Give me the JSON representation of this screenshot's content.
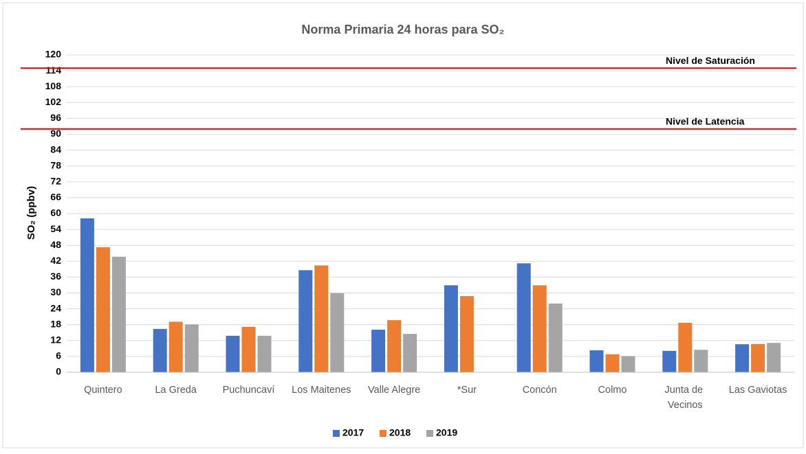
{
  "chart_data": {
    "type": "bar",
    "title": "Norma Primaria 24 horas para SO₂",
    "y_label": "SO₂ (ppbv)",
    "categories": [
      "Quintero",
      "La Greda",
      "Puchuncaví",
      "Los Maitenes",
      "Valle Alegre",
      "*Sur",
      "Concón",
      "Colmo",
      "Junta de Vecinos",
      "Las Gaviotas"
    ],
    "series": [
      {
        "name": "2017",
        "color": "#4472c4",
        "values": [
          58.2,
          16.4,
          13.8,
          38.6,
          16.1,
          32.9,
          41.2,
          8.3,
          8.1,
          10.6
        ]
      },
      {
        "name": "2018",
        "color": "#ed7d31",
        "values": [
          47.3,
          19.1,
          17.2,
          40.4,
          19.7,
          28.8,
          32.9,
          6.8,
          18.7,
          10.7
        ]
      },
      {
        "name": "2019",
        "color": "#a5a5a5",
        "values": [
          43.7,
          18.1,
          13.8,
          29.9,
          14.5,
          null,
          26.0,
          6.1,
          8.5,
          11.1
        ]
      }
    ],
    "reference_lines": [
      {
        "value": 115,
        "label": "Nivel de Saturación",
        "color": "#e00000"
      },
      {
        "value": 92,
        "label": "Nivel de Latencia",
        "color": "#e00000"
      }
    ],
    "ylim": [
      0,
      120
    ],
    "yticks": [
      0,
      6,
      12,
      18,
      24,
      30,
      36,
      42,
      48,
      54,
      60,
      66,
      72,
      78,
      84,
      90,
      96,
      102,
      108,
      114,
      120
    ],
    "grid": true,
    "legend": "bottom"
  }
}
